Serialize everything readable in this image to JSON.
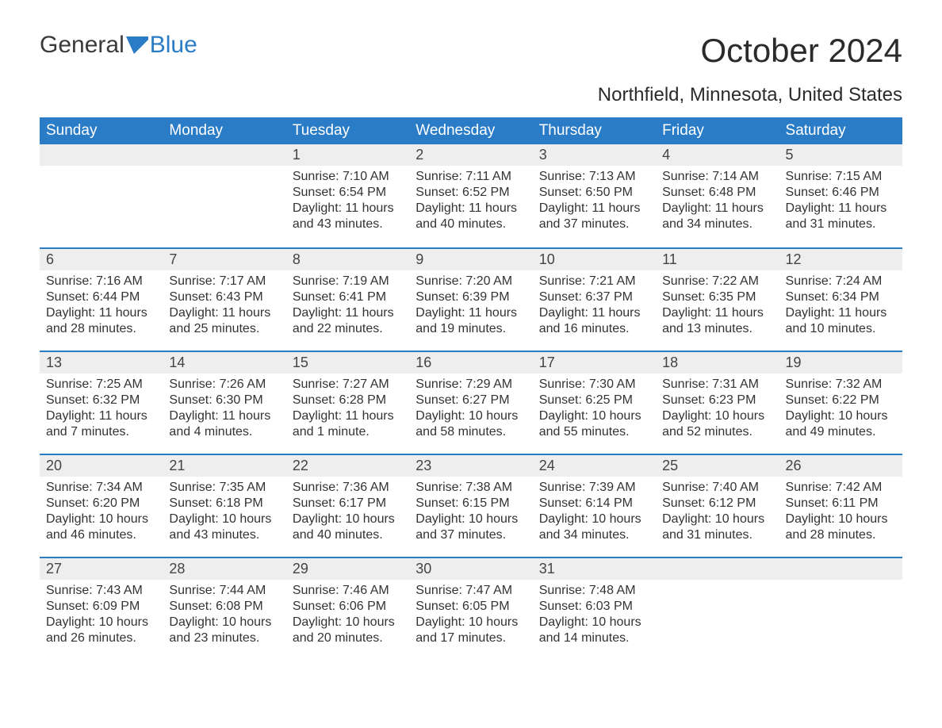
{
  "logo": {
    "text1": "General",
    "text2": "Blue"
  },
  "title": "October 2024",
  "location": "Northfield, Minnesota, United States",
  "colors": {
    "header_bg": "#2a7cc7",
    "header_text": "#ffffff",
    "daynum_bg": "#eeeeee",
    "border_accent": "#2a7cc7",
    "body_text": "#333333"
  },
  "day_headers": [
    "Sunday",
    "Monday",
    "Tuesday",
    "Wednesday",
    "Thursday",
    "Friday",
    "Saturday"
  ],
  "weeks": [
    [
      null,
      null,
      {
        "n": "1",
        "sunrise": "Sunrise: 7:10 AM",
        "sunset": "Sunset: 6:54 PM",
        "daylight": "Daylight: 11 hours and 43 minutes."
      },
      {
        "n": "2",
        "sunrise": "Sunrise: 7:11 AM",
        "sunset": "Sunset: 6:52 PM",
        "daylight": "Daylight: 11 hours and 40 minutes."
      },
      {
        "n": "3",
        "sunrise": "Sunrise: 7:13 AM",
        "sunset": "Sunset: 6:50 PM",
        "daylight": "Daylight: 11 hours and 37 minutes."
      },
      {
        "n": "4",
        "sunrise": "Sunrise: 7:14 AM",
        "sunset": "Sunset: 6:48 PM",
        "daylight": "Daylight: 11 hours and 34 minutes."
      },
      {
        "n": "5",
        "sunrise": "Sunrise: 7:15 AM",
        "sunset": "Sunset: 6:46 PM",
        "daylight": "Daylight: 11 hours and 31 minutes."
      }
    ],
    [
      {
        "n": "6",
        "sunrise": "Sunrise: 7:16 AM",
        "sunset": "Sunset: 6:44 PM",
        "daylight": "Daylight: 11 hours and 28 minutes."
      },
      {
        "n": "7",
        "sunrise": "Sunrise: 7:17 AM",
        "sunset": "Sunset: 6:43 PM",
        "daylight": "Daylight: 11 hours and 25 minutes."
      },
      {
        "n": "8",
        "sunrise": "Sunrise: 7:19 AM",
        "sunset": "Sunset: 6:41 PM",
        "daylight": "Daylight: 11 hours and 22 minutes."
      },
      {
        "n": "9",
        "sunrise": "Sunrise: 7:20 AM",
        "sunset": "Sunset: 6:39 PM",
        "daylight": "Daylight: 11 hours and 19 minutes."
      },
      {
        "n": "10",
        "sunrise": "Sunrise: 7:21 AM",
        "sunset": "Sunset: 6:37 PM",
        "daylight": "Daylight: 11 hours and 16 minutes."
      },
      {
        "n": "11",
        "sunrise": "Sunrise: 7:22 AM",
        "sunset": "Sunset: 6:35 PM",
        "daylight": "Daylight: 11 hours and 13 minutes."
      },
      {
        "n": "12",
        "sunrise": "Sunrise: 7:24 AM",
        "sunset": "Sunset: 6:34 PM",
        "daylight": "Daylight: 11 hours and 10 minutes."
      }
    ],
    [
      {
        "n": "13",
        "sunrise": "Sunrise: 7:25 AM",
        "sunset": "Sunset: 6:32 PM",
        "daylight": "Daylight: 11 hours and 7 minutes."
      },
      {
        "n": "14",
        "sunrise": "Sunrise: 7:26 AM",
        "sunset": "Sunset: 6:30 PM",
        "daylight": "Daylight: 11 hours and 4 minutes."
      },
      {
        "n": "15",
        "sunrise": "Sunrise: 7:27 AM",
        "sunset": "Sunset: 6:28 PM",
        "daylight": "Daylight: 11 hours and 1 minute."
      },
      {
        "n": "16",
        "sunrise": "Sunrise: 7:29 AM",
        "sunset": "Sunset: 6:27 PM",
        "daylight": "Daylight: 10 hours and 58 minutes."
      },
      {
        "n": "17",
        "sunrise": "Sunrise: 7:30 AM",
        "sunset": "Sunset: 6:25 PM",
        "daylight": "Daylight: 10 hours and 55 minutes."
      },
      {
        "n": "18",
        "sunrise": "Sunrise: 7:31 AM",
        "sunset": "Sunset: 6:23 PM",
        "daylight": "Daylight: 10 hours and 52 minutes."
      },
      {
        "n": "19",
        "sunrise": "Sunrise: 7:32 AM",
        "sunset": "Sunset: 6:22 PM",
        "daylight": "Daylight: 10 hours and 49 minutes."
      }
    ],
    [
      {
        "n": "20",
        "sunrise": "Sunrise: 7:34 AM",
        "sunset": "Sunset: 6:20 PM",
        "daylight": "Daylight: 10 hours and 46 minutes."
      },
      {
        "n": "21",
        "sunrise": "Sunrise: 7:35 AM",
        "sunset": "Sunset: 6:18 PM",
        "daylight": "Daylight: 10 hours and 43 minutes."
      },
      {
        "n": "22",
        "sunrise": "Sunrise: 7:36 AM",
        "sunset": "Sunset: 6:17 PM",
        "daylight": "Daylight: 10 hours and 40 minutes."
      },
      {
        "n": "23",
        "sunrise": "Sunrise: 7:38 AM",
        "sunset": "Sunset: 6:15 PM",
        "daylight": "Daylight: 10 hours and 37 minutes."
      },
      {
        "n": "24",
        "sunrise": "Sunrise: 7:39 AM",
        "sunset": "Sunset: 6:14 PM",
        "daylight": "Daylight: 10 hours and 34 minutes."
      },
      {
        "n": "25",
        "sunrise": "Sunrise: 7:40 AM",
        "sunset": "Sunset: 6:12 PM",
        "daylight": "Daylight: 10 hours and 31 minutes."
      },
      {
        "n": "26",
        "sunrise": "Sunrise: 7:42 AM",
        "sunset": "Sunset: 6:11 PM",
        "daylight": "Daylight: 10 hours and 28 minutes."
      }
    ],
    [
      {
        "n": "27",
        "sunrise": "Sunrise: 7:43 AM",
        "sunset": "Sunset: 6:09 PM",
        "daylight": "Daylight: 10 hours and 26 minutes."
      },
      {
        "n": "28",
        "sunrise": "Sunrise: 7:44 AM",
        "sunset": "Sunset: 6:08 PM",
        "daylight": "Daylight: 10 hours and 23 minutes."
      },
      {
        "n": "29",
        "sunrise": "Sunrise: 7:46 AM",
        "sunset": "Sunset: 6:06 PM",
        "daylight": "Daylight: 10 hours and 20 minutes."
      },
      {
        "n": "30",
        "sunrise": "Sunrise: 7:47 AM",
        "sunset": "Sunset: 6:05 PM",
        "daylight": "Daylight: 10 hours and 17 minutes."
      },
      {
        "n": "31",
        "sunrise": "Sunrise: 7:48 AM",
        "sunset": "Sunset: 6:03 PM",
        "daylight": "Daylight: 10 hours and 14 minutes."
      },
      null,
      null
    ]
  ]
}
